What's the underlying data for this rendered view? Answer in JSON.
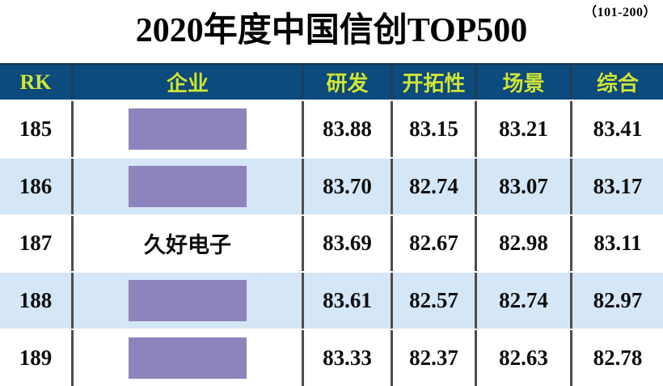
{
  "header": {
    "range_label": "（101-200）",
    "title": "2020年度中国信创TOP500"
  },
  "table": {
    "columns": {
      "rk": "RK",
      "company": "企业",
      "rd": "研发",
      "pioneering": "开拓性",
      "scene": "场景",
      "overall": "综合"
    },
    "rows": [
      {
        "rk": "185",
        "company": "",
        "redacted": true,
        "rd": "83.88",
        "pioneering": "83.15",
        "scene": "83.21",
        "overall": "83.41"
      },
      {
        "rk": "186",
        "company": "",
        "redacted": true,
        "rd": "83.70",
        "pioneering": "82.74",
        "scene": "83.07",
        "overall": "83.17"
      },
      {
        "rk": "187",
        "company": "久好电子",
        "redacted": false,
        "rd": "83.69",
        "pioneering": "82.67",
        "scene": "82.98",
        "overall": "83.11"
      },
      {
        "rk": "188",
        "company": "",
        "redacted": true,
        "rd": "83.61",
        "pioneering": "82.57",
        "scene": "82.74",
        "overall": "82.97"
      },
      {
        "rk": "189",
        "company": "",
        "redacted": true,
        "rd": "83.33",
        "pioneering": "82.37",
        "scene": "82.63",
        "overall": "82.78"
      }
    ]
  },
  "colors": {
    "header_bg": "#0d4a7d",
    "header_text": "#cde63a",
    "row_alt_bg": "#d5e6f6",
    "redaction_box": "#8e84bc",
    "column_divider": "#4d4d4d",
    "body_text": "#101010"
  }
}
